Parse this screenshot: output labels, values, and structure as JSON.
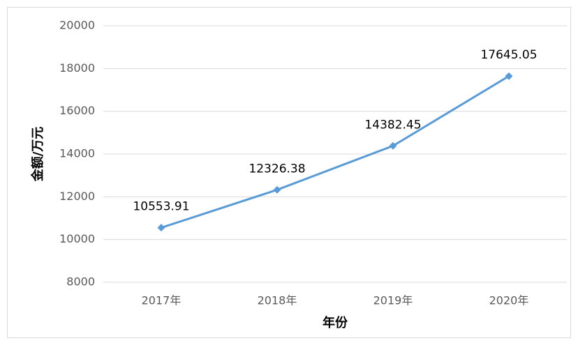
{
  "chart_data": {
    "type": "line",
    "xlabel": "年份",
    "ylabel": "金额/万元",
    "categories": [
      "2017年",
      "2018年",
      "2019年",
      "2020年"
    ],
    "series": [
      {
        "name": "金额",
        "color": "#5b9bd5",
        "values": [
          10553.91,
          12326.38,
          14382.45,
          17645.05
        ]
      }
    ],
    "ylim": [
      8000,
      20000
    ],
    "yticks": [
      8000,
      10000,
      12000,
      14000,
      16000,
      18000,
      20000
    ],
    "grid": true,
    "data_labels": true
  }
}
